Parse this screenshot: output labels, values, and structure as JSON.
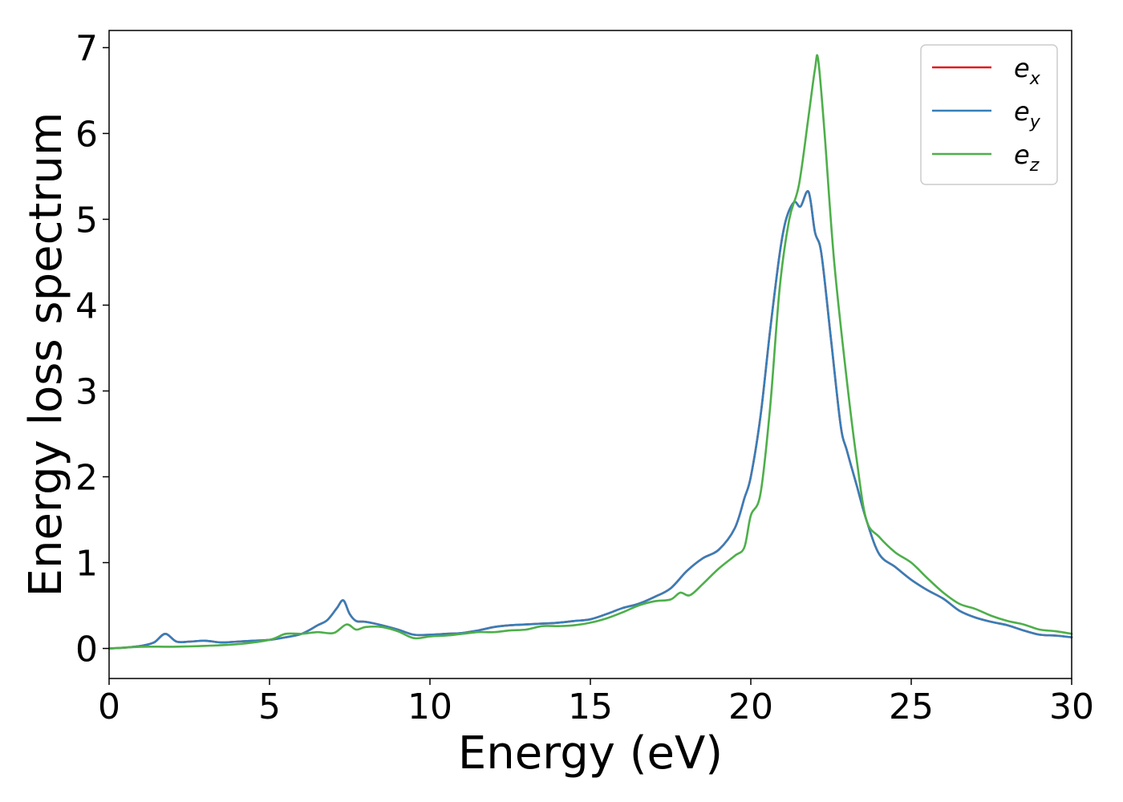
{
  "chart_data": {
    "type": "line",
    "title": "",
    "xlabel": "Energy (eV)",
    "ylabel": "Energy loss spectrum",
    "xlim": [
      0,
      30
    ],
    "ylim": [
      -0.35,
      7.2
    ],
    "xticks": [
      0,
      5,
      10,
      15,
      20,
      25,
      30
    ],
    "yticks": [
      0,
      1,
      2,
      3,
      4,
      5,
      6,
      7
    ],
    "grid": false,
    "legend_position": "top-right",
    "series": [
      {
        "name": "e_x",
        "label_base": "e",
        "label_sub": "x",
        "color": "#e41a1c",
        "x": [
          0,
          0.5,
          1.0,
          1.4,
          1.75,
          2.1,
          2.5,
          3.0,
          3.5,
          4.0,
          4.5,
          5.0,
          5.5,
          6.0,
          6.5,
          6.8,
          7.1,
          7.3,
          7.5,
          7.7,
          8.0,
          8.5,
          9.0,
          9.5,
          10.0,
          10.5,
          11.0,
          11.5,
          12.0,
          12.5,
          13.0,
          13.5,
          14.0,
          14.5,
          15.0,
          15.5,
          16.0,
          16.5,
          17.0,
          17.5,
          18.0,
          18.5,
          19.0,
          19.5,
          19.8,
          20.0,
          20.3,
          20.6,
          20.9,
          21.1,
          21.35,
          21.55,
          21.8,
          22.0,
          22.2,
          22.5,
          22.8,
          23.0,
          23.3,
          23.6,
          24.0,
          24.5,
          25.0,
          25.5,
          26.0,
          26.5,
          27.0,
          27.5,
          28.0,
          28.5,
          29.0,
          29.5,
          30.0
        ],
        "y": [
          0.0,
          0.01,
          0.03,
          0.07,
          0.17,
          0.08,
          0.08,
          0.09,
          0.07,
          0.08,
          0.09,
          0.1,
          0.13,
          0.17,
          0.27,
          0.33,
          0.47,
          0.56,
          0.4,
          0.32,
          0.31,
          0.27,
          0.22,
          0.16,
          0.16,
          0.17,
          0.18,
          0.21,
          0.25,
          0.27,
          0.28,
          0.29,
          0.3,
          0.32,
          0.34,
          0.4,
          0.47,
          0.52,
          0.6,
          0.7,
          0.9,
          1.05,
          1.15,
          1.4,
          1.75,
          2.0,
          2.7,
          3.7,
          4.6,
          5.0,
          5.2,
          5.15,
          5.32,
          4.85,
          4.6,
          3.6,
          2.6,
          2.3,
          1.9,
          1.5,
          1.1,
          0.95,
          0.8,
          0.68,
          0.58,
          0.44,
          0.36,
          0.31,
          0.27,
          0.21,
          0.16,
          0.15,
          0.13
        ]
      },
      {
        "name": "e_y",
        "label_base": "e",
        "label_sub": "y",
        "color": "#377eb8",
        "x": [
          0,
          0.5,
          1.0,
          1.4,
          1.75,
          2.1,
          2.5,
          3.0,
          3.5,
          4.0,
          4.5,
          5.0,
          5.5,
          6.0,
          6.5,
          6.8,
          7.1,
          7.3,
          7.5,
          7.7,
          8.0,
          8.5,
          9.0,
          9.5,
          10.0,
          10.5,
          11.0,
          11.5,
          12.0,
          12.5,
          13.0,
          13.5,
          14.0,
          14.5,
          15.0,
          15.5,
          16.0,
          16.5,
          17.0,
          17.5,
          18.0,
          18.5,
          19.0,
          19.5,
          19.8,
          20.0,
          20.3,
          20.6,
          20.9,
          21.1,
          21.35,
          21.55,
          21.8,
          22.0,
          22.2,
          22.5,
          22.8,
          23.0,
          23.3,
          23.6,
          24.0,
          24.5,
          25.0,
          25.5,
          26.0,
          26.5,
          27.0,
          27.5,
          28.0,
          28.5,
          29.0,
          29.5,
          30.0
        ],
        "y": [
          0.0,
          0.01,
          0.03,
          0.07,
          0.17,
          0.08,
          0.08,
          0.09,
          0.07,
          0.08,
          0.09,
          0.1,
          0.13,
          0.17,
          0.27,
          0.33,
          0.47,
          0.56,
          0.4,
          0.32,
          0.31,
          0.27,
          0.22,
          0.16,
          0.16,
          0.17,
          0.18,
          0.21,
          0.25,
          0.27,
          0.28,
          0.29,
          0.3,
          0.32,
          0.34,
          0.4,
          0.47,
          0.52,
          0.6,
          0.7,
          0.9,
          1.05,
          1.15,
          1.4,
          1.75,
          2.0,
          2.7,
          3.7,
          4.6,
          5.0,
          5.2,
          5.15,
          5.32,
          4.85,
          4.6,
          3.6,
          2.6,
          2.3,
          1.9,
          1.5,
          1.1,
          0.95,
          0.8,
          0.68,
          0.58,
          0.44,
          0.36,
          0.31,
          0.27,
          0.21,
          0.16,
          0.15,
          0.13
        ]
      },
      {
        "name": "e_z",
        "label_base": "e",
        "label_sub": "z",
        "color": "#4daf4a",
        "x": [
          0,
          1.0,
          2.0,
          3.0,
          4.0,
          5.0,
          5.5,
          6.0,
          6.5,
          7.0,
          7.4,
          7.7,
          8.0,
          8.5,
          9.0,
          9.5,
          10.0,
          10.5,
          11.0,
          11.5,
          12.0,
          12.5,
          13.0,
          13.5,
          14.0,
          14.5,
          15.0,
          15.5,
          16.0,
          16.5,
          17.0,
          17.5,
          17.8,
          18.1,
          18.5,
          19.0,
          19.5,
          19.8,
          20.0,
          20.3,
          20.6,
          20.9,
          21.2,
          21.5,
          21.8,
          22.0,
          22.1,
          22.3,
          22.6,
          23.0,
          23.3,
          23.6,
          24.0,
          24.5,
          25.0,
          25.5,
          26.0,
          26.5,
          27.0,
          27.5,
          28.0,
          28.5,
          29.0,
          29.5,
          30.0
        ],
        "y": [
          0.0,
          0.02,
          0.02,
          0.03,
          0.05,
          0.1,
          0.17,
          0.17,
          0.19,
          0.18,
          0.28,
          0.22,
          0.25,
          0.25,
          0.2,
          0.12,
          0.14,
          0.15,
          0.17,
          0.19,
          0.19,
          0.21,
          0.22,
          0.26,
          0.26,
          0.27,
          0.3,
          0.35,
          0.42,
          0.5,
          0.55,
          0.57,
          0.65,
          0.62,
          0.75,
          0.93,
          1.08,
          1.18,
          1.55,
          1.8,
          2.8,
          4.2,
          5.0,
          5.4,
          6.2,
          6.75,
          6.86,
          6.0,
          4.5,
          3.1,
          2.2,
          1.5,
          1.3,
          1.12,
          1.0,
          0.82,
          0.65,
          0.52,
          0.46,
          0.38,
          0.32,
          0.28,
          0.22,
          0.2,
          0.17
        ]
      }
    ]
  }
}
